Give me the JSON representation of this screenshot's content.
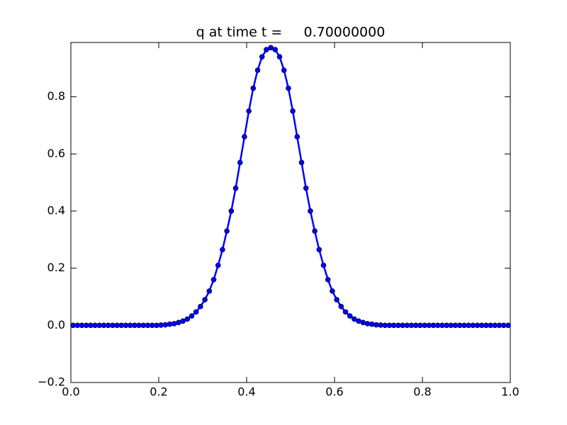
{
  "chart_data": {
    "type": "line",
    "title": "q at time t =     0.70000000",
    "x": [
      0.005,
      0.015,
      0.025,
      0.035,
      0.045,
      0.055,
      0.065,
      0.075,
      0.085,
      0.095,
      0.105,
      0.115,
      0.125,
      0.135,
      0.145,
      0.155,
      0.165,
      0.175,
      0.185,
      0.195,
      0.205,
      0.215,
      0.225,
      0.235,
      0.245,
      0.255,
      0.265,
      0.275,
      0.285,
      0.295,
      0.305,
      0.315,
      0.325,
      0.335,
      0.345,
      0.355,
      0.365,
      0.375,
      0.385,
      0.395,
      0.405,
      0.415,
      0.425,
      0.435,
      0.445,
      0.455,
      0.465,
      0.475,
      0.485,
      0.495,
      0.505,
      0.515,
      0.525,
      0.535,
      0.545,
      0.555,
      0.565,
      0.575,
      0.585,
      0.595,
      0.605,
      0.615,
      0.625,
      0.635,
      0.645,
      0.655,
      0.665,
      0.675,
      0.685,
      0.695,
      0.705,
      0.715,
      0.725,
      0.735,
      0.745,
      0.755,
      0.765,
      0.775,
      0.785,
      0.795,
      0.805,
      0.815,
      0.825,
      0.835,
      0.845,
      0.855,
      0.865,
      0.875,
      0.885,
      0.895,
      0.905,
      0.915,
      0.925,
      0.935,
      0.945,
      0.955,
      0.965,
      0.975,
      0.985,
      0.995
    ],
    "series": [
      {
        "color": "#0000ff",
        "values": [
          0,
          0,
          0,
          0,
          0,
          0,
          0,
          0,
          0,
          0,
          0,
          0,
          0,
          0,
          0,
          0,
          0,
          0,
          0,
          0,
          0.001,
          0.002,
          0.004,
          0.006,
          0.01,
          0.015,
          0.022,
          0.033,
          0.047,
          0.066,
          0.09,
          0.12,
          0.16,
          0.21,
          0.265,
          0.33,
          0.4,
          0.48,
          0.57,
          0.66,
          0.75,
          0.83,
          0.893,
          0.94,
          0.965,
          0.972,
          0.965,
          0.94,
          0.893,
          0.83,
          0.75,
          0.66,
          0.57,
          0.48,
          0.4,
          0.33,
          0.265,
          0.21,
          0.16,
          0.12,
          0.09,
          0.066,
          0.047,
          0.033,
          0.022,
          0.015,
          0.01,
          0.006,
          0.004,
          0.002,
          0.001,
          0,
          0,
          0,
          0,
          0,
          0,
          0,
          0,
          0,
          0,
          0,
          0,
          0,
          0,
          0,
          0,
          0,
          0,
          0,
          0,
          0,
          0,
          0,
          0,
          0,
          0,
          0,
          0,
          0
        ]
      }
    ],
    "xlim": [
      0,
      1
    ],
    "ylim": [
      -0.2,
      0.99
    ],
    "xticks": [
      {
        "value": 0,
        "label": "0.0"
      },
      {
        "value": 0.2,
        "label": "0.2"
      },
      {
        "value": 0.4,
        "label": "0.4"
      },
      {
        "value": 0.6,
        "label": "0.6"
      },
      {
        "value": 0.8,
        "label": "0.8"
      },
      {
        "value": 1,
        "label": "1.0"
      }
    ],
    "yticks": [
      {
        "value": -0.2,
        "label": "−0.2"
      },
      {
        "value": 0,
        "label": "0.0"
      },
      {
        "value": 0.2,
        "label": "0.2"
      },
      {
        "value": 0.4,
        "label": "0.4"
      },
      {
        "value": 0.6,
        "label": "0.6"
      },
      {
        "value": 0.8,
        "label": "0.8"
      }
    ]
  }
}
